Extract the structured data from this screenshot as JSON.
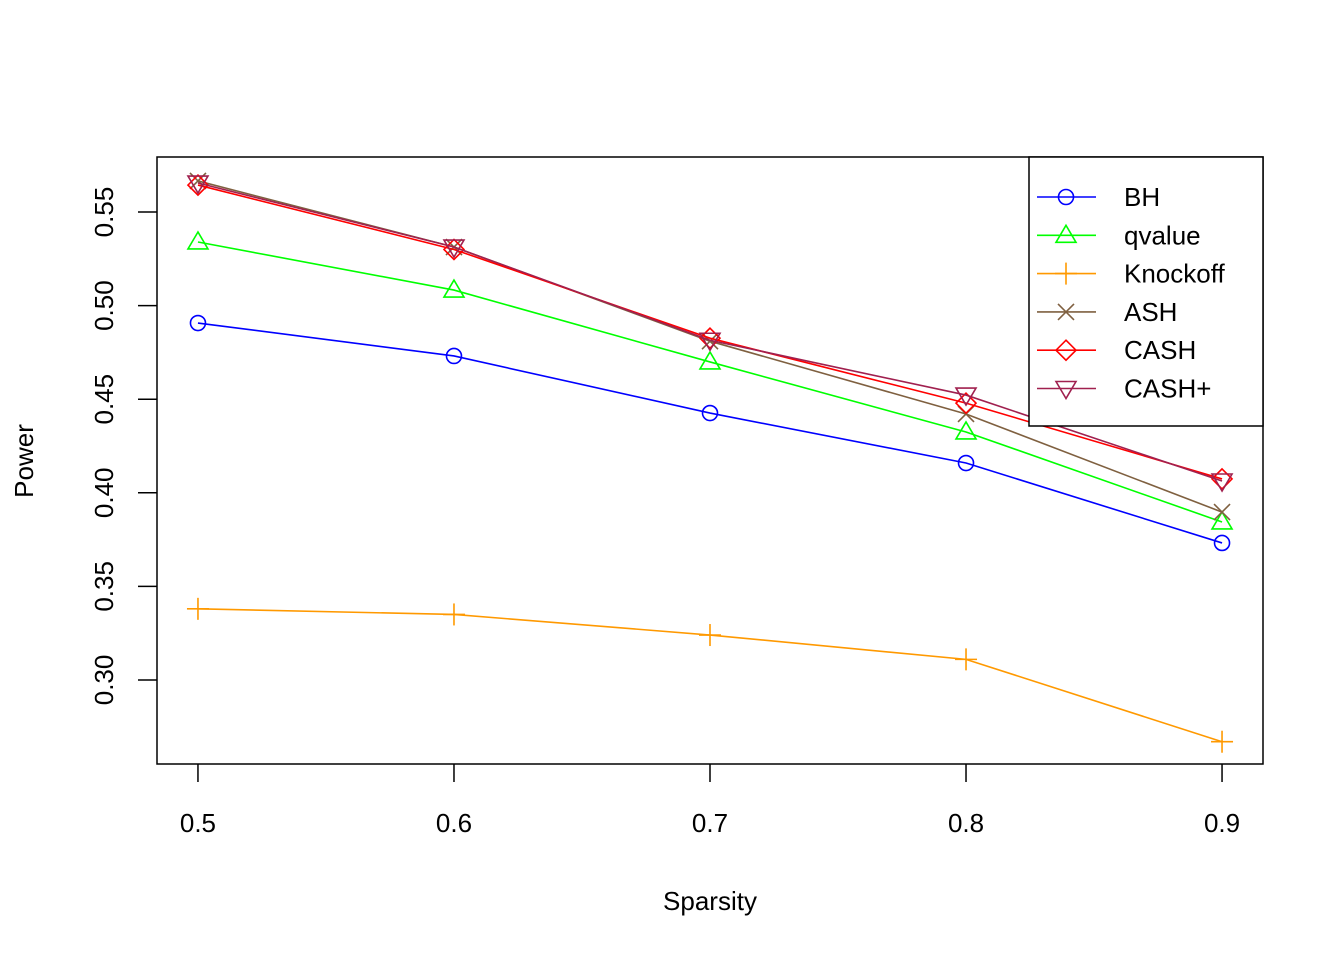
{
  "chart_data": {
    "type": "line",
    "title": "",
    "xlabel": "Sparsity",
    "ylabel": "Power",
    "x": [
      0.5,
      0.6,
      0.7,
      0.8,
      0.9
    ],
    "xlim": [
      0.484,
      0.916
    ],
    "ylim": [
      0.2551,
      0.5794
    ],
    "xticks": [
      0.5,
      0.6,
      0.7,
      0.8,
      0.9
    ],
    "xtick_labels": [
      "0.5",
      "0.6",
      "0.7",
      "0.8",
      "0.9"
    ],
    "yticks": [
      0.3,
      0.35,
      0.4,
      0.45,
      0.5,
      0.55
    ],
    "ytick_labels": [
      "0.30",
      "0.35",
      "0.40",
      "0.45",
      "0.50",
      "0.55"
    ],
    "grid": false,
    "legend_position": "top-right",
    "series": [
      {
        "name": "BH",
        "color": "#0000ff",
        "marker": "circle",
        "values": [
          0.4907,
          0.4731,
          0.4426,
          0.4159,
          0.3732
        ]
      },
      {
        "name": "qvalue",
        "color": "#00ff00",
        "marker": "triangle-up",
        "values": [
          0.534,
          0.5083,
          0.4699,
          0.4325,
          0.3844
        ]
      },
      {
        "name": "Knockoff",
        "color": "#ff9900",
        "marker": "plus",
        "values": [
          0.338,
          0.335,
          0.324,
          0.311,
          0.267
        ]
      },
      {
        "name": "ASH",
        "color": "#7f6040",
        "marker": "cross",
        "values": [
          0.5666,
          0.5313,
          0.481,
          0.4421,
          0.3897
        ]
      },
      {
        "name": "CASH",
        "color": "#ff0000",
        "marker": "diamond",
        "values": [
          0.5644,
          0.53,
          0.4826,
          0.4479,
          0.4074
        ]
      },
      {
        "name": "CASH+",
        "color": "#a0204f",
        "marker": "triangle-down",
        "values": [
          0.5655,
          0.5313,
          0.4815,
          0.4522,
          0.4063
        ]
      }
    ]
  }
}
